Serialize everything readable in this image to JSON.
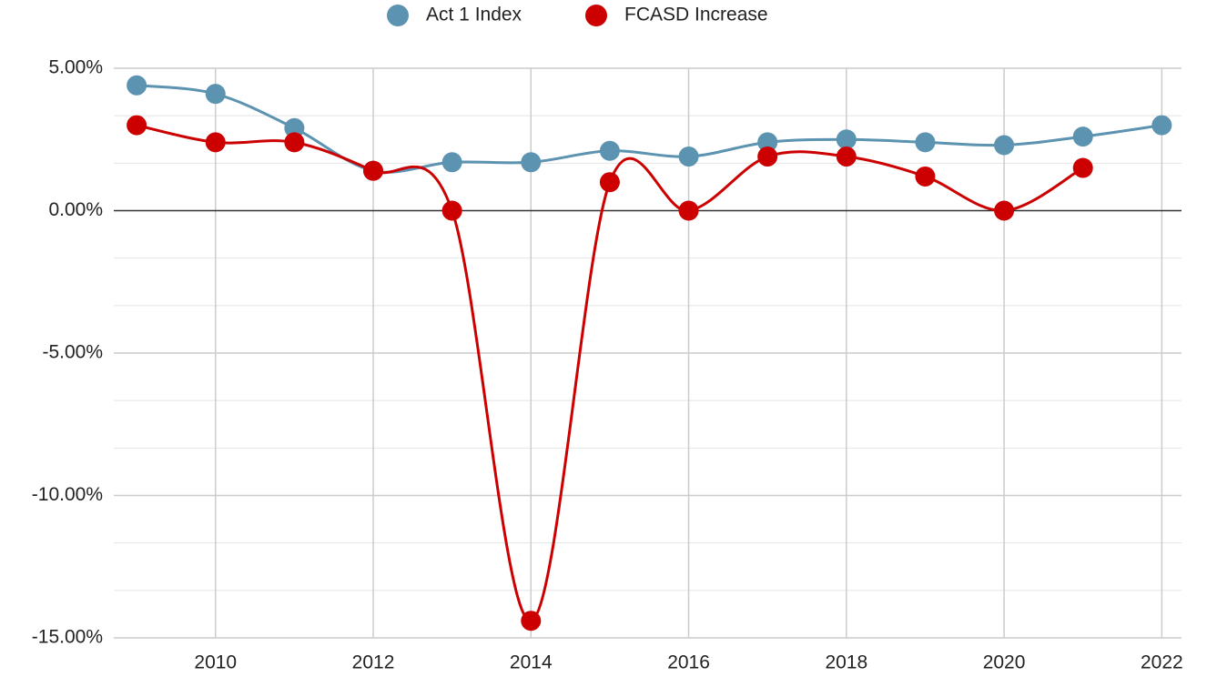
{
  "chart_data": {
    "type": "line",
    "x": [
      2009,
      2010,
      2011,
      2012,
      2013,
      2014,
      2015,
      2016,
      2017,
      2018,
      2019,
      2020,
      2021,
      2022
    ],
    "series": [
      {
        "name": "Act 1 Index",
        "color": "#5b93b0",
        "values": [
          4.4,
          4.1,
          2.9,
          1.4,
          1.7,
          1.7,
          2.1,
          1.9,
          2.4,
          2.5,
          2.4,
          2.3,
          2.6,
          3.0
        ]
      },
      {
        "name": "FCASD Increase",
        "color": "#cc0000",
        "values": [
          3.0,
          2.4,
          2.4,
          1.4,
          0,
          -14.4,
          1.0,
          0,
          1.9,
          1.9,
          1.2,
          0,
          1.5,
          null
        ]
      }
    ],
    "xlim": [
      2008.71,
      2022.25
    ],
    "xticks": [
      2010,
      2012,
      2014,
      2016,
      2018,
      2020,
      2022
    ],
    "ylim": [
      -15,
      5
    ],
    "yticks": [
      {
        "value": 5,
        "label": "5.00%"
      },
      {
        "value": 0,
        "label": "0.00%"
      },
      {
        "value": -5,
        "label": "-5.00%"
      },
      {
        "value": -10,
        "label": "-10.00%"
      },
      {
        "value": -15,
        "label": "-15.00%"
      }
    ],
    "yminor": [
      3.333,
      1.667,
      -1.667,
      -3.333,
      -6.667,
      -8.333,
      -11.667,
      -13.333
    ],
    "grid": true,
    "legend": "top",
    "smooth": true
  }
}
